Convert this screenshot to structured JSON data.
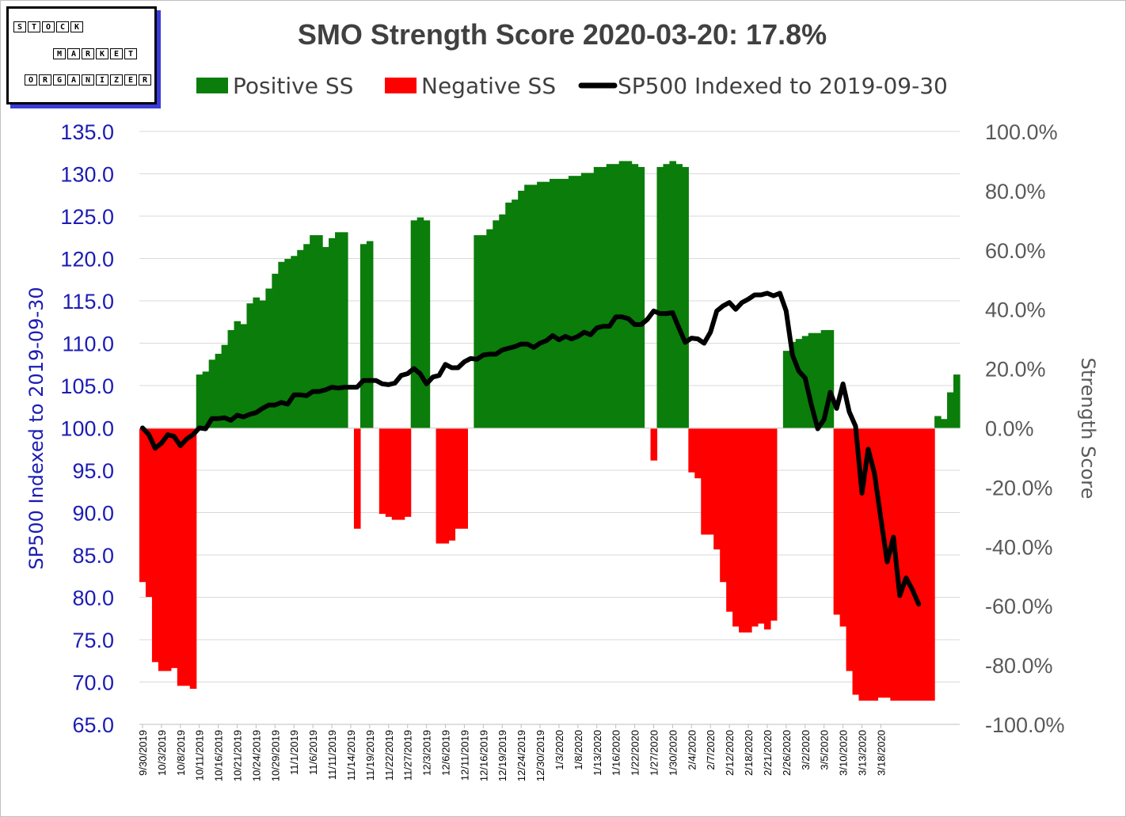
{
  "logo": {
    "row1": [
      "S",
      "T",
      "O",
      "C",
      "K"
    ],
    "row2": [
      "M",
      "A",
      "R",
      "K",
      "E",
      "T"
    ],
    "row3": [
      "O",
      "R",
      "G",
      "A",
      "N",
      "I",
      "Z",
      "E",
      "R"
    ]
  },
  "chart_data": {
    "type": "bar",
    "title": "SMO Strength Score 2020-03-20: 17.8%",
    "ylabel": "SP500 Indexed to 2019-09-30",
    "y2label": "Strength Score",
    "ylim": [
      65,
      135
    ],
    "y2lim": [
      -100,
      100
    ],
    "y_ticks": [
      "135.0",
      "130.0",
      "125.0",
      "120.0",
      "115.0",
      "110.0",
      "105.0",
      "100.0",
      "95.0",
      "90.0",
      "85.0",
      "80.0",
      "75.0",
      "70.0",
      "65.0"
    ],
    "y2_ticks": [
      "100.0%",
      "80.0%",
      "60.0%",
      "40.0%",
      "20.0%",
      "0.0%",
      "-20.0%",
      "-40.0%",
      "-60.0%",
      "-80.0%",
      "-100.0%"
    ],
    "x_tick_labels": [
      "9/30/2019",
      "10/3/2019",
      "10/8/2019",
      "10/11/2019",
      "10/16/2019",
      "10/21/2019",
      "10/24/2019",
      "10/29/2019",
      "11/1/2019",
      "11/6/2019",
      "11/11/2019",
      "11/14/2019",
      "11/19/2019",
      "11/22/2019",
      "11/27/2019",
      "12/3/2019",
      "12/6/2019",
      "12/11/2019",
      "12/16/2019",
      "12/19/2019",
      "12/24/2019",
      "12/30/2019",
      "1/3/2020",
      "1/8/2020",
      "1/13/2020",
      "1/16/2020",
      "1/22/2020",
      "1/27/2020",
      "1/30/2020",
      "2/4/2020",
      "2/7/2020",
      "2/12/2020",
      "2/18/2020",
      "2/21/2020",
      "2/26/2020",
      "3/2/2020",
      "3/5/2020",
      "3/10/2020",
      "3/13/2020",
      "3/18/2020"
    ],
    "legend": {
      "position": "top",
      "items": [
        {
          "name": "Positive SS",
          "color": "#0a7d0a"
        },
        {
          "name": "Negative SS",
          "color": "#ff0000"
        },
        {
          "name": "SP500 Indexed to 2019-09-30",
          "color": "#000000"
        }
      ]
    },
    "grid": "horizontal",
    "colors": {
      "positive": "#0a7d0a",
      "negative": "#ff0000",
      "line": "#000000",
      "left_axis": "#1c1cb4",
      "right_axis": "#595959"
    },
    "series": [
      {
        "name": "Positive SS / Negative SS",
        "axis": "right",
        "values": [
          -52,
          -57,
          -79,
          -82,
          -82,
          -81,
          -87,
          -87,
          -88,
          18,
          19,
          23,
          25,
          28,
          33,
          36,
          35,
          42,
          44,
          43,
          47,
          52,
          56,
          57,
          58,
          60,
          62,
          65,
          65,
          61,
          64,
          66,
          66,
          0,
          -34,
          62,
          63,
          0,
          -29,
          -30,
          -31,
          -31,
          -30,
          70,
          71,
          70,
          0,
          -39,
          -39,
          -38,
          -34,
          -34,
          0,
          65,
          65,
          67,
          70,
          72,
          76,
          77,
          80,
          82,
          82,
          83,
          83,
          84,
          84,
          84,
          85,
          85,
          86,
          86,
          88,
          88,
          89,
          89,
          90,
          90,
          89,
          88,
          0,
          -11,
          88,
          89,
          90,
          89,
          88,
          -15,
          -17,
          -36,
          -36,
          -41,
          -52,
          -62,
          -67,
          -69,
          -69,
          -67,
          -66,
          -68,
          -65,
          0,
          26,
          29,
          30,
          31,
          32,
          32,
          33,
          33,
          -63,
          -67,
          -82,
          -90,
          -92,
          -92,
          -92,
          -91,
          -91,
          -92,
          -92,
          -92,
          -92,
          -92,
          -92,
          -92,
          4,
          3,
          12,
          18
        ]
      },
      {
        "name": "SP500 Indexed to 2019-09-30",
        "axis": "left",
        "values": [
          100,
          99.2,
          97.6,
          98.2,
          99.2,
          99,
          97.9,
          98.7,
          99.2,
          100,
          99.9,
          101.1,
          101.1,
          101.2,
          100.9,
          101.5,
          101.3,
          101.6,
          101.8,
          102.3,
          102.7,
          102.7,
          103,
          102.8,
          103.9,
          103.9,
          103.8,
          104.3,
          104.3,
          104.5,
          104.8,
          104.7,
          104.8,
          104.8,
          104.8,
          105.6,
          105.6,
          105.6,
          105.2,
          105.1,
          105.3,
          106.2,
          106.4,
          107,
          106.4,
          105.2,
          106,
          106.2,
          107.5,
          107.1,
          107.1,
          107.8,
          108.2,
          108.1,
          108.6,
          108.7,
          108.7,
          109.2,
          109.4,
          109.6,
          109.9,
          109.9,
          109.5,
          110,
          110.3,
          110.9,
          110.4,
          110.8,
          110.5,
          110.8,
          111.3,
          111,
          111.8,
          112,
          112,
          113.1,
          113.1,
          112.9,
          112.2,
          112.2,
          112.8,
          113.8,
          113.5,
          113.5,
          113.6,
          111.8,
          110.1,
          110.6,
          110.5,
          110,
          111.3,
          113.8,
          114.4,
          114.8,
          114,
          114.8,
          115.2,
          115.7,
          115.7,
          115.9,
          115.6,
          115.9,
          113.8,
          108.6,
          106.7,
          105.9,
          102.7,
          99.9,
          101,
          104.2,
          102.3,
          105.2,
          101.9,
          100.2,
          92.3,
          97.5,
          94.6,
          89.3,
          84.2,
          87.1,
          80.2,
          82.3,
          80.9,
          79.2
        ]
      }
    ]
  }
}
